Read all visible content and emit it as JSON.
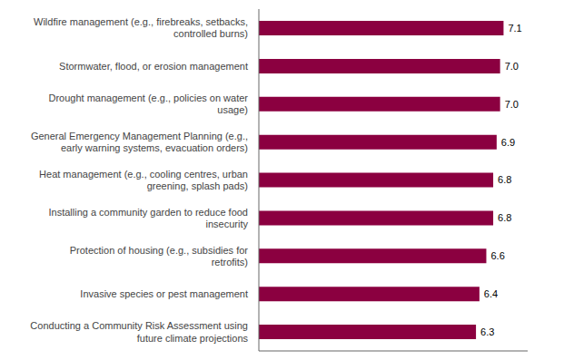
{
  "chart_data": {
    "type": "bar",
    "orientation": "horizontal",
    "categories": [
      "Conducting a Community Risk Assessment using\nfuture climate projections",
      "Invasive species or pest management",
      "Protection of housing (e.g., subsidies for\nretrofits)",
      "Installing a community garden to reduce food\ninsecurity",
      "Heat management (e.g., cooling centres, urban\ngreening, splash pads)",
      "General Emergency Management Planning (e.g.,\nearly warning systems, evacuation orders)",
      "Drought management (e.g., policies on water\nusage)",
      "Stormwater, flood, or erosion management",
      "Wildfire management (e.g., firebreaks, setbacks,\ncontrolled burns)"
    ],
    "values": [
      6.3,
      6.4,
      6.6,
      6.8,
      6.8,
      6.9,
      7.0,
      7.0,
      7.1
    ],
    "value_labels": [
      "6.3",
      "6.4",
      "6.6",
      "6.8",
      "6.8",
      "6.9",
      "7.0",
      "7.0",
      "7.1"
    ],
    "color": "#8B0040",
    "xlim": [
      0,
      7.8
    ],
    "data_labels": true,
    "tick_labels": "y"
  }
}
